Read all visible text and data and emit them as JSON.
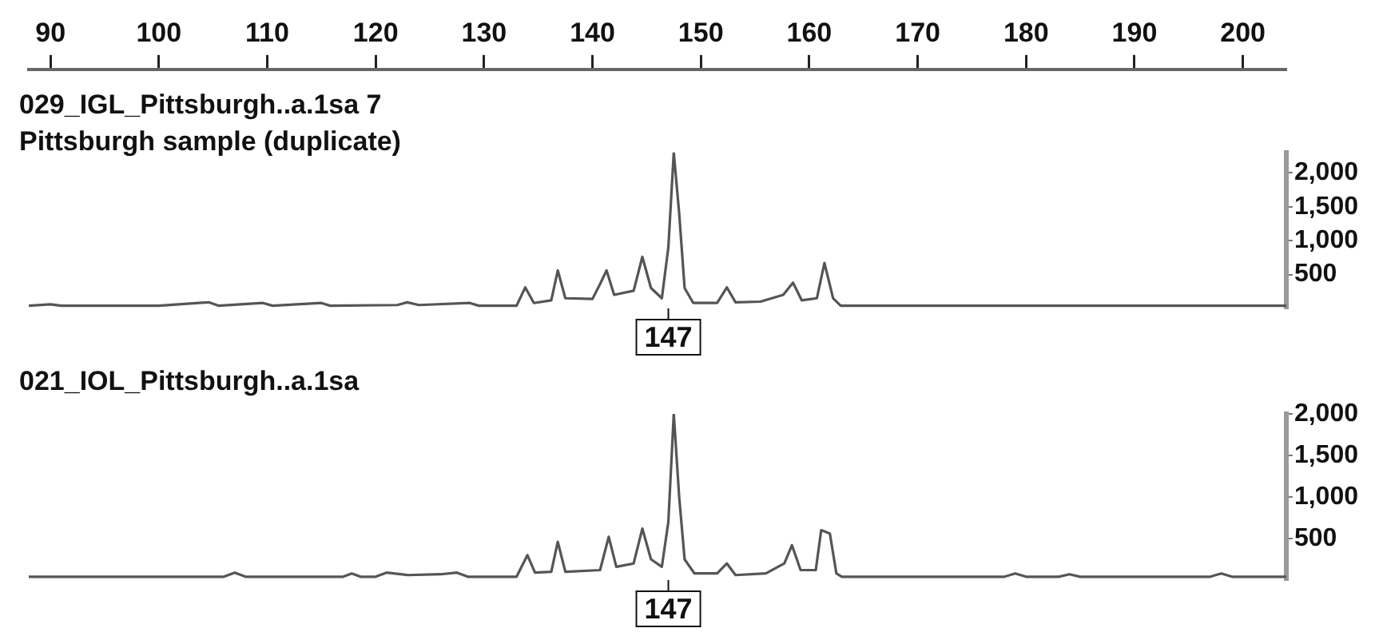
{
  "chart_data": [
    {
      "type": "line",
      "title": "029_IGL_Pittsburgh..a.1sa 7",
      "subtitle": "Pittsburgh sample (duplicate)",
      "color": "#555555",
      "x": [
        88,
        90,
        91,
        100,
        104.6,
        105.5,
        109.6,
        110.5,
        115,
        115.8,
        122,
        122.9,
        124,
        128.7,
        129.5,
        133,
        133.8,
        134.6,
        136.2,
        136.8,
        137.5,
        140,
        140.7,
        141.3,
        142,
        143.8,
        144.6,
        145.4,
        146.4,
        147,
        147.5,
        148,
        148.5,
        149.3,
        151.5,
        152.4,
        153.2,
        155.5,
        157.6,
        158.5,
        159.3,
        160.7,
        161.4,
        162.2,
        162.9,
        175,
        190,
        204
      ],
      "values": [
        40,
        60,
        40,
        40,
        90,
        40,
        80,
        40,
        80,
        40,
        50,
        90,
        50,
        80,
        40,
        40,
        310,
        80,
        120,
        560,
        150,
        140,
        360,
        560,
        200,
        260,
        760,
        300,
        150,
        900,
        2300,
        1400,
        300,
        80,
        80,
        310,
        90,
        100,
        200,
        380,
        120,
        150,
        670,
        150,
        40,
        40,
        40,
        40
      ],
      "xlim": [
        88,
        204
      ],
      "xticks": [
        90,
        100,
        110,
        120,
        130,
        140,
        150,
        160,
        170,
        180,
        190,
        200
      ],
      "ylim": [
        0,
        2300
      ],
      "yticks": [
        500,
        {
          "value": 1000,
          "label": "1,000"
        },
        {
          "value": 1500,
          "label": "1,500"
        },
        {
          "value": 2000,
          "label": "2,000"
        }
      ],
      "annotations": [
        {
          "text": "147",
          "x": 147
        }
      ],
      "grid": false,
      "legend": false
    },
    {
      "type": "line",
      "title": "021_IOL_Pittsburgh..a.1sa",
      "color": "#555555",
      "x": [
        88,
        106,
        107,
        108,
        117,
        117.8,
        118.6,
        120,
        121,
        123,
        126,
        127.5,
        128.5,
        133,
        134,
        134.7,
        136.2,
        136.8,
        137.5,
        140.7,
        141.5,
        142.2,
        143.8,
        144.6,
        145.4,
        146.4,
        147,
        147.5,
        148,
        148.5,
        149.4,
        151.5,
        152.4,
        153.2,
        156,
        157.7,
        158.4,
        159.2,
        160.6,
        161.1,
        161.9,
        162.5,
        163,
        178,
        179,
        180,
        183,
        184,
        185,
        197,
        198,
        199,
        204
      ],
      "values": [
        40,
        40,
        90,
        40,
        40,
        80,
        40,
        40,
        90,
        60,
        70,
        90,
        40,
        40,
        300,
        90,
        100,
        460,
        100,
        120,
        520,
        160,
        200,
        620,
        250,
        160,
        700,
        2000,
        1000,
        250,
        80,
        80,
        200,
        60,
        80,
        200,
        420,
        120,
        120,
        600,
        560,
        80,
        40,
        40,
        80,
        40,
        40,
        70,
        40,
        40,
        80,
        40,
        40
      ],
      "xticks": [
        90,
        100,
        110,
        120,
        130,
        140,
        150,
        160,
        170,
        180,
        190,
        200
      ],
      "ylim": [
        0,
        2000
      ],
      "yticks": [
        500,
        {
          "value": 1000,
          "label": "1,000"
        },
        {
          "value": 1500,
          "label": "1,500"
        },
        {
          "value": 2000,
          "label": "2,000"
        }
      ],
      "annotations": [
        {
          "text": "147",
          "x": 147
        }
      ],
      "tick_labels": "y",
      "grid": false,
      "legend": false
    }
  ]
}
